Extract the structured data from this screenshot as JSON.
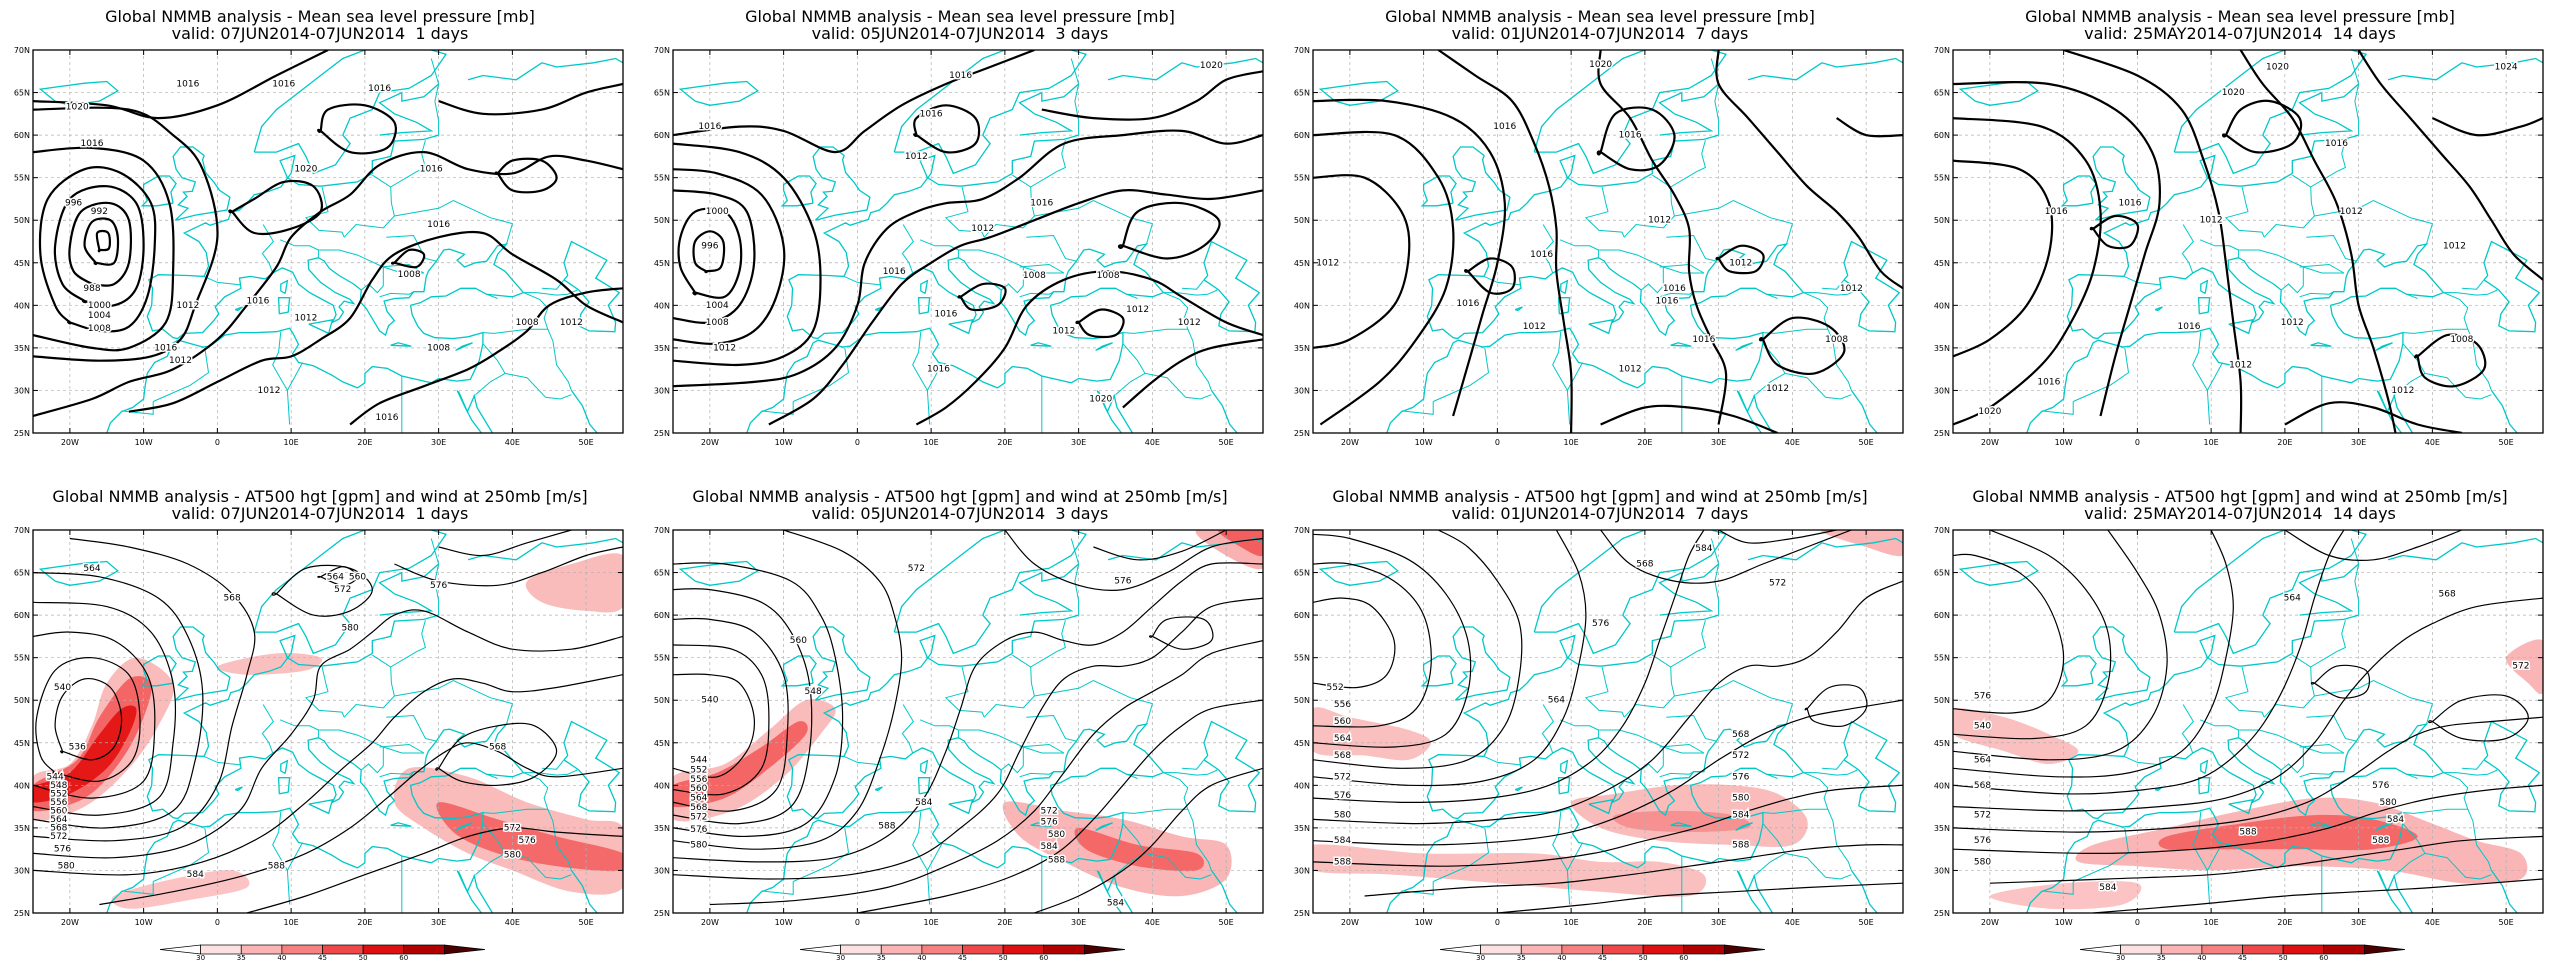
{
  "panels": [
    {
      "id": "mslp-1d",
      "row": 0,
      "col": 0,
      "title": "Global NMMB analysis - Mean sea level pressure [mb]",
      "valid": "valid: 07JUN2014-07JUN2014  1 days",
      "contour_labels": [
        "1020",
        "1016",
        "1016",
        "1016",
        "1016",
        "1020",
        "1016",
        "996",
        "992",
        "988",
        "1000",
        "1004",
        "1008",
        "1012",
        "1016",
        "1016",
        "1012",
        "1012",
        "1016",
        "1008",
        "1008",
        "1012",
        "1012",
        "1008",
        "1016"
      ]
    },
    {
      "id": "mslp-3d",
      "row": 0,
      "col": 1,
      "title": "Global NMMB analysis - Mean sea level pressure [mb]",
      "valid": "valid: 05JUN2014-07JUN2014  3 days",
      "contour_labels": [
        "1016",
        "1020",
        "1016",
        "1012",
        "1016",
        "1016",
        "1000",
        "996",
        "1004",
        "1008",
        "1012",
        "1016",
        "1016",
        "1012",
        "1008",
        "1012",
        "1008",
        "1012",
        "1012",
        "1016",
        "1020"
      ]
    },
    {
      "id": "mslp-7d",
      "row": 0,
      "col": 2,
      "title": "Global NMMB analysis - Mean sea level pressure [mb]",
      "valid": "valid: 01JUN2014-07JUN2014  7 days",
      "contour_labels": [
        "1020",
        "1016",
        "1016",
        "1016",
        "1012",
        "1012",
        "1016",
        "1016",
        "1012",
        "1016",
        "1012",
        "1012",
        "1008",
        "1012",
        "1012",
        "1016"
      ]
    },
    {
      "id": "mslp-14d",
      "row": 0,
      "col": 3,
      "title": "Global NMMB analysis - Mean sea level pressure [mb]",
      "valid": "valid: 25MAY2014-07JUN2014  14 days",
      "contour_labels": [
        "1024",
        "1020",
        "1020",
        "1016",
        "1016",
        "1016",
        "1012",
        "1012",
        "1016",
        "1012",
        "1008",
        "1012",
        "1012",
        "1020",
        "1016",
        "1012"
      ]
    },
    {
      "id": "z500-1d",
      "row": 1,
      "col": 0,
      "title": "Global NMMB analysis - AT500 hgt [gpm] and wind at 250mb [m/s]",
      "valid": "valid: 07JUN2014-07JUN2014  1 days",
      "contour_labels": [
        "564",
        "568",
        "572",
        "576",
        "580",
        "560",
        "564",
        "540",
        "536",
        "544",
        "548",
        "552",
        "556",
        "560",
        "564",
        "568",
        "572",
        "576",
        "580",
        "584",
        "588",
        "568",
        "572",
        "576",
        "580"
      ]
    },
    {
      "id": "z500-3d",
      "row": 1,
      "col": 1,
      "title": "Global NMMB analysis - AT500 hgt [gpm] and wind at 250mb [m/s]",
      "valid": "valid: 05JUN2014-07JUN2014  3 days",
      "contour_labels": [
        "572",
        "576",
        "560",
        "548",
        "540",
        "544",
        "552",
        "556",
        "560",
        "564",
        "568",
        "572",
        "576",
        "580",
        "584",
        "588",
        "572",
        "576",
        "580",
        "584",
        "588",
        "584"
      ]
    },
    {
      "id": "z500-7d",
      "row": 1,
      "col": 2,
      "title": "Global NMMB analysis - AT500 hgt [gpm] and wind at 250mb [m/s]",
      "valid": "valid: 01JUN2014-07JUN2014  7 days",
      "contour_labels": [
        "584",
        "568",
        "572",
        "576",
        "552",
        "556",
        "560",
        "564",
        "568",
        "572",
        "576",
        "580",
        "584",
        "588",
        "564",
        "568",
        "572",
        "576",
        "580",
        "584",
        "588"
      ]
    },
    {
      "id": "z500-14d",
      "row": 1,
      "col": 3,
      "title": "Global NMMB analysis - AT500 hgt [gpm] and wind at 250mb [m/s]",
      "valid": "valid: 25MAY2014-07JUN2014  14 days",
      "contour_labels": [
        "564",
        "568",
        "572",
        "576",
        "540",
        "564",
        "568",
        "572",
        "576",
        "580",
        "584",
        "588",
        "576",
        "580",
        "584",
        "588"
      ]
    }
  ],
  "x_ticks": [
    "20W",
    "10W",
    "0",
    "10E",
    "20E",
    "30E",
    "40E",
    "50E"
  ],
  "y_ticks": [
    "70N",
    "65N",
    "60N",
    "55N",
    "50N",
    "45N",
    "40N",
    "35N",
    "30N",
    "25N"
  ],
  "colorbar": {
    "levels": [
      "30",
      "35",
      "40",
      "45",
      "50",
      "60"
    ],
    "colors": [
      "#ffffff",
      "#fde0e0",
      "#fbb3b3",
      "#f78080",
      "#f04848",
      "#e01010",
      "#b00000",
      "#4a0000"
    ]
  },
  "colors": {
    "coast": "#00c8c8",
    "isobar": "#000000",
    "jet": "#ff5050",
    "grid": "#b0b0b0"
  }
}
